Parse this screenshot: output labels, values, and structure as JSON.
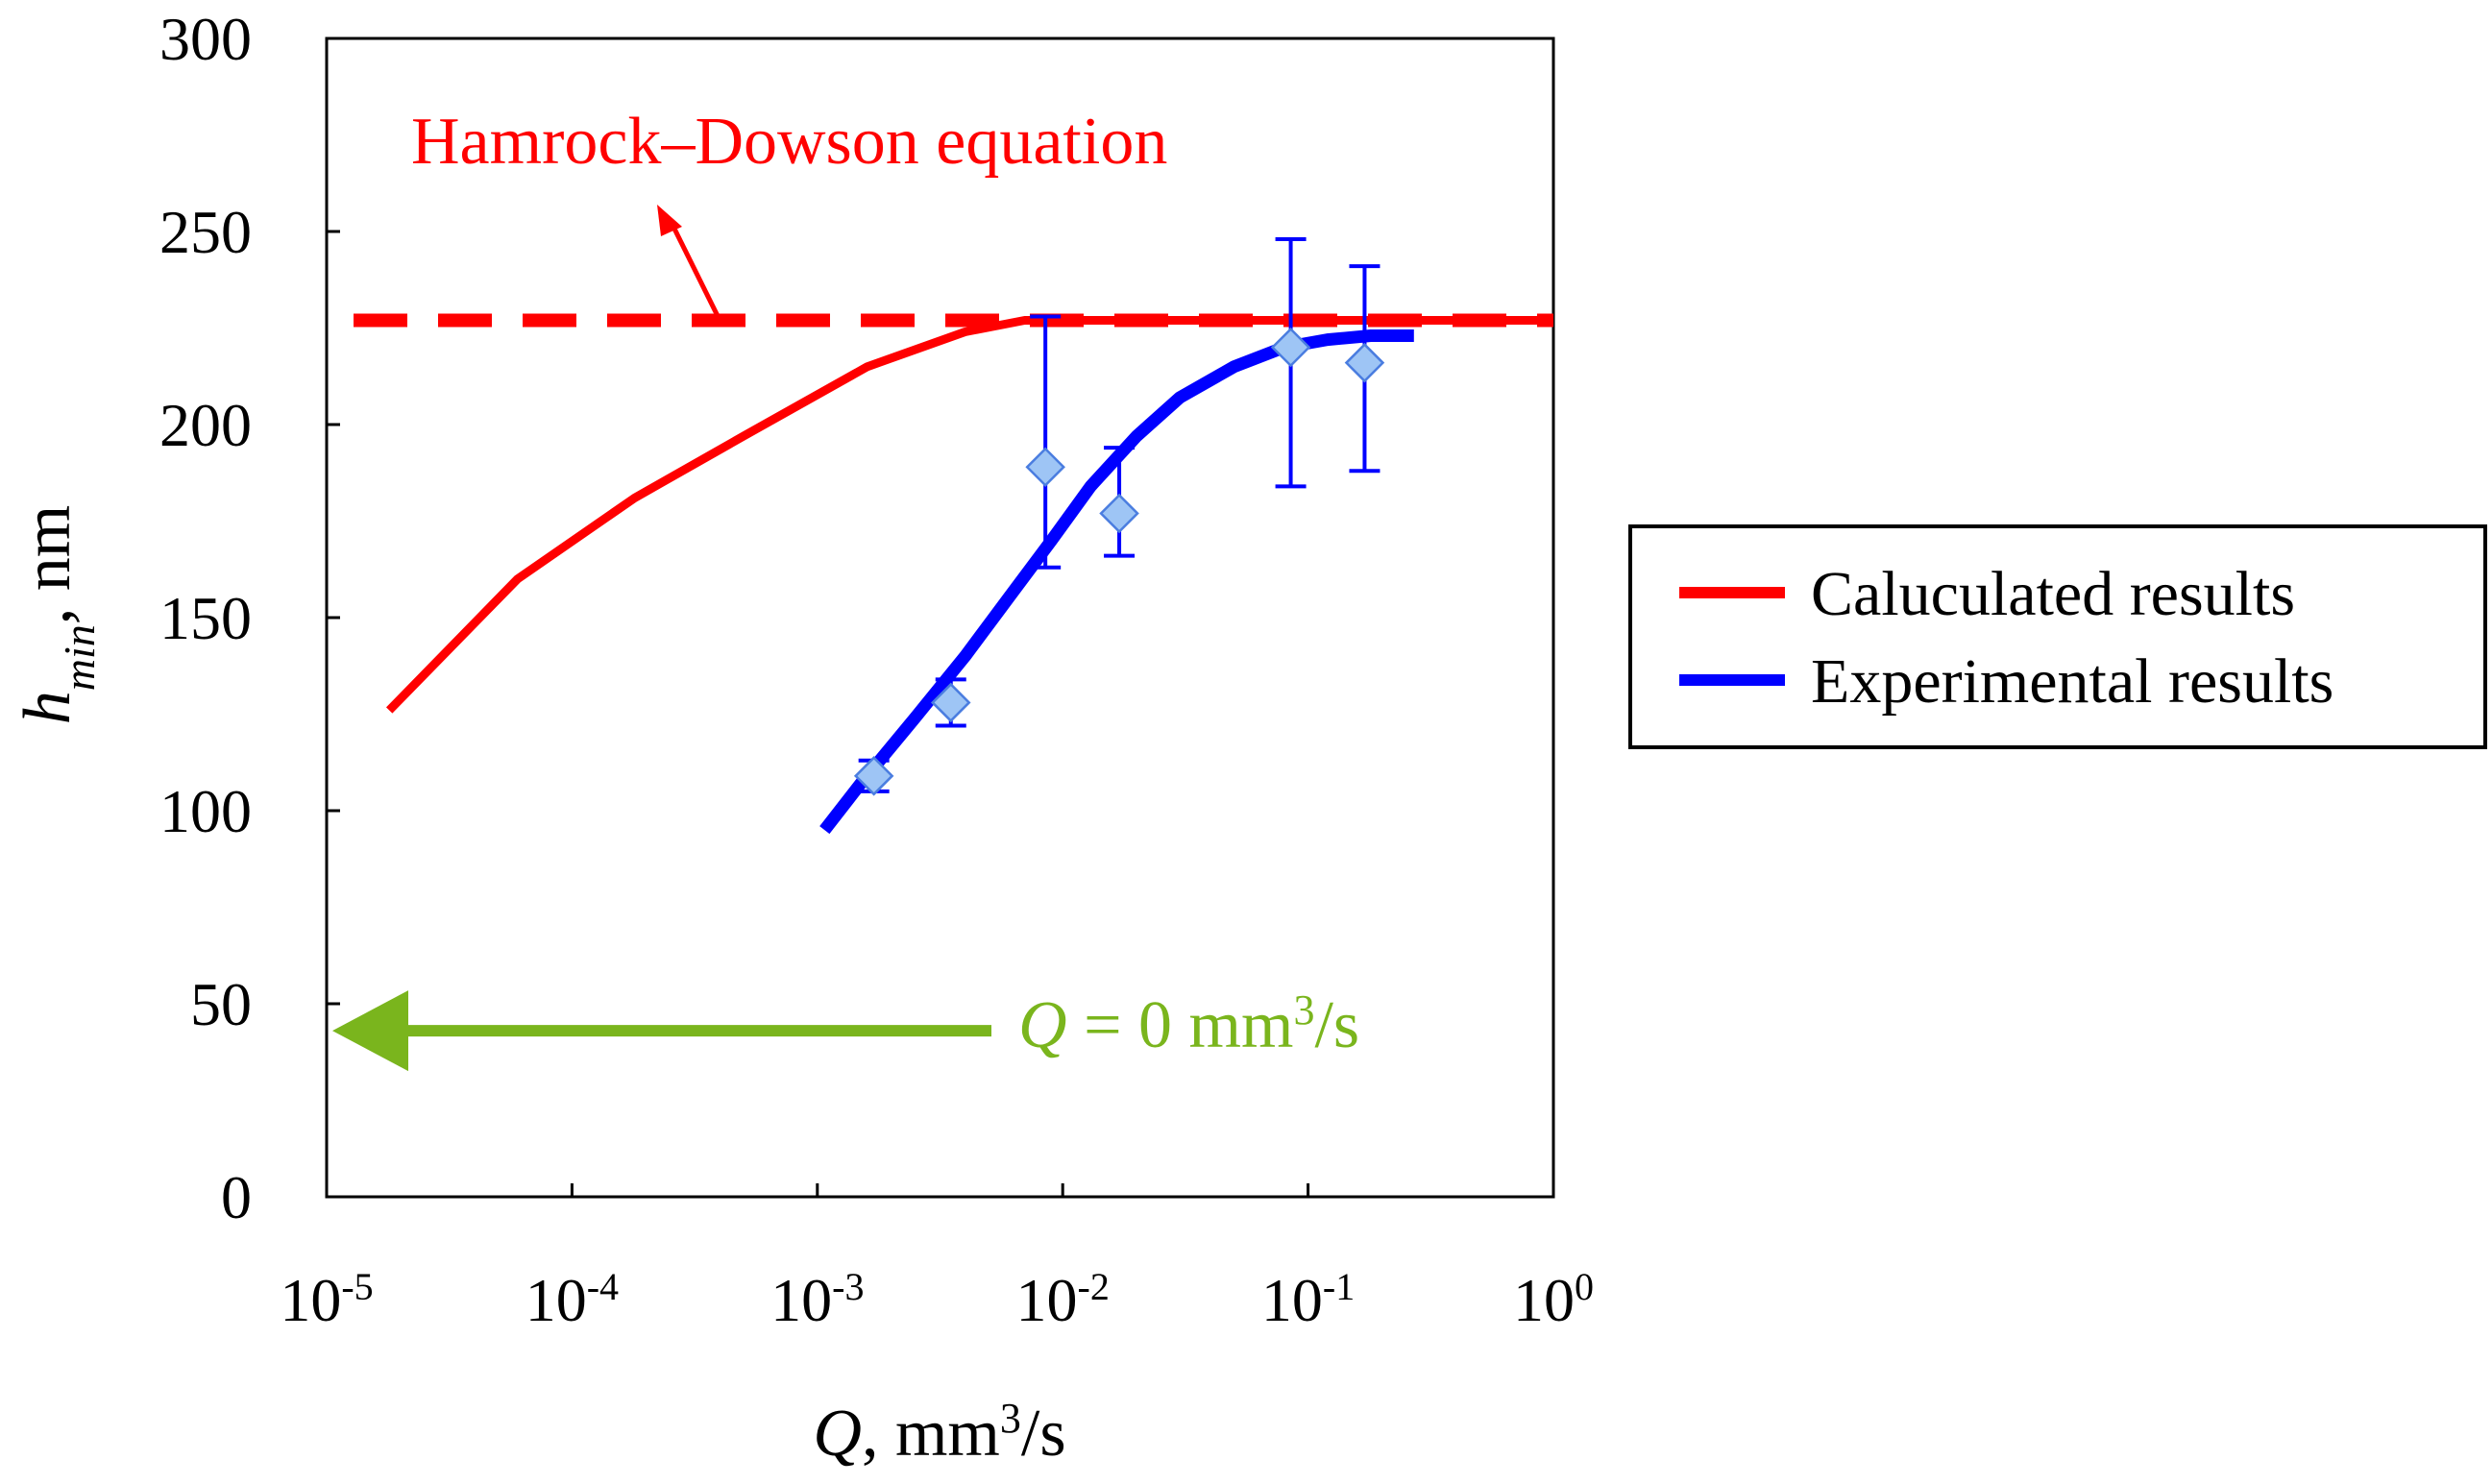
{
  "chart_data": {
    "type": "line",
    "title": "",
    "x_scale": "log",
    "xlim": [
      1e-05,
      1
    ],
    "ylim": [
      0,
      300
    ],
    "x_ticks": [
      {
        "value": 1e-05,
        "base": "10",
        "exp": "-5"
      },
      {
        "value": 0.0001,
        "base": "10",
        "exp": "-4"
      },
      {
        "value": 0.001,
        "base": "10",
        "exp": "-3"
      },
      {
        "value": 0.01,
        "base": "10",
        "exp": "-2"
      },
      {
        "value": 0.1,
        "base": "10",
        "exp": "-1"
      },
      {
        "value": 1,
        "base": "10",
        "exp": "0"
      }
    ],
    "y_ticks": [
      {
        "value": 0,
        "label": "0"
      },
      {
        "value": 50,
        "label": "50"
      },
      {
        "value": 100,
        "label": "100"
      },
      {
        "value": 150,
        "label": "150"
      },
      {
        "value": 200,
        "label": "200"
      },
      {
        "value": 250,
        "label": "250"
      },
      {
        "value": 300,
        "label": "300"
      }
    ],
    "xlabel": {
      "var": "Q",
      "rest": ", mm",
      "sup": "3",
      "tail": "/s"
    },
    "ylabel": {
      "var": "h",
      "sub": "min",
      "rest": ", nm"
    },
    "series": [
      {
        "name": "Caluculated results",
        "color": "#ff0000",
        "style": "solid",
        "x": [
          1.8e-05,
          6e-05,
          0.00018,
          0.0005,
          0.0016,
          0.004,
          0.007,
          0.01,
          0.1,
          0.3,
          1
        ],
        "y": [
          126,
          160,
          181,
          197,
          215,
          224,
          227,
          227,
          227,
          227,
          227
        ]
      },
      {
        "name": "Experimental results",
        "color": "#0000ff",
        "style": "solid",
        "x": [
          0.00107,
          0.0015,
          0.0025,
          0.004,
          0.006,
          0.009,
          0.013,
          0.02,
          0.03,
          0.05,
          0.08,
          0.12,
          0.18,
          0.27
        ],
        "y": [
          95,
          107,
          124,
          140,
          155,
          170,
          184,
          197,
          207,
          215,
          220,
          222,
          223,
          223
        ]
      }
    ],
    "experimental_points": {
      "color": "#0000ff",
      "marker_fill": "#9ec5f5",
      "x": [
        0.0017,
        0.0035,
        0.0085,
        0.017,
        0.085,
        0.17
      ],
      "y": [
        109,
        128,
        189,
        177,
        220,
        216
      ],
      "err_low": [
        105,
        122,
        163,
        166,
        184,
        188
      ],
      "err_high": [
        113,
        134,
        228,
        194,
        248,
        241
      ]
    },
    "reference_line": {
      "label": "Hamrock–Dowson equation",
      "y": 227,
      "color": "#ff0000",
      "style": "dashed"
    },
    "annotation": {
      "var": "Q",
      "rest": " = 0 mm",
      "sup": "3",
      "tail": "/s",
      "y": 43,
      "color": "#7ab51d"
    },
    "legend": {
      "position": "right",
      "entries": [
        {
          "label": "Caluculated results",
          "color": "#ff0000"
        },
        {
          "label": "Experimental results",
          "color": "#0000ff"
        }
      ]
    }
  }
}
